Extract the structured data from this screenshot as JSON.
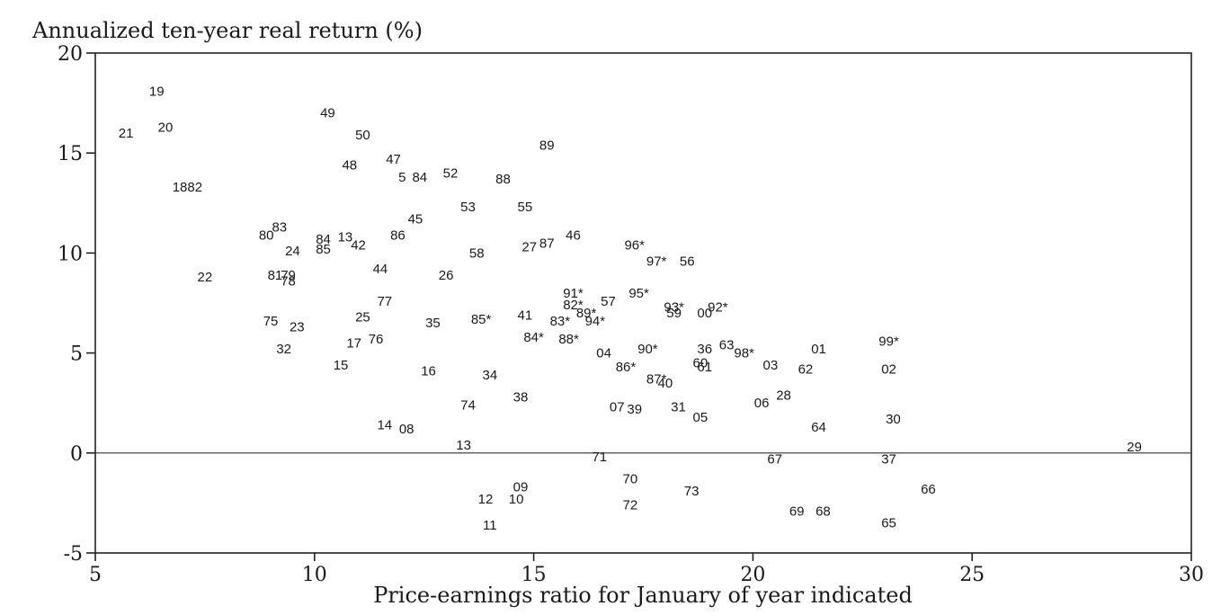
{
  "chart_data": {
    "type": "scatter",
    "ylabel": "Annualized ten-year real return (%)",
    "xlabel": "Price-earnings ratio for January of year indicated",
    "xlim": [
      5,
      30
    ],
    "ylim": [
      -5,
      20
    ],
    "x_ticks": [
      5,
      10,
      15,
      20,
      25,
      30
    ],
    "y_ticks": [
      20,
      15,
      10,
      5,
      0,
      -5
    ],
    "reference_line_y": 0,
    "grid": false,
    "points": [
      {
        "label": "19",
        "x": 6.4,
        "y": 18.1
      },
      {
        "label": "20",
        "x": 6.6,
        "y": 16.3
      },
      {
        "label": "21",
        "x": 5.7,
        "y": 16.0
      },
      {
        "label": "1882",
        "x": 7.1,
        "y": 13.3
      },
      {
        "label": "49",
        "x": 10.3,
        "y": 17.0
      },
      {
        "label": "50",
        "x": 11.1,
        "y": 15.9
      },
      {
        "label": "48",
        "x": 10.8,
        "y": 14.4
      },
      {
        "label": "47",
        "x": 11.8,
        "y": 14.7
      },
      {
        "label": "5",
        "x": 12.0,
        "y": 13.8
      },
      {
        "label": "84",
        "x": 12.4,
        "y": 13.8
      },
      {
        "label": "52",
        "x": 13.1,
        "y": 14.0
      },
      {
        "label": "88",
        "x": 14.3,
        "y": 13.7
      },
      {
        "label": "89",
        "x": 15.3,
        "y": 15.4
      },
      {
        "label": "53",
        "x": 13.5,
        "y": 12.3
      },
      {
        "label": "55",
        "x": 14.8,
        "y": 12.3
      },
      {
        "label": "45",
        "x": 12.3,
        "y": 11.7
      },
      {
        "label": "83",
        "x": 9.2,
        "y": 11.3
      },
      {
        "label": "80",
        "x": 8.9,
        "y": 10.9
      },
      {
        "label": "84",
        "x": 10.2,
        "y": 10.7
      },
      {
        "label": "13",
        "x": 10.7,
        "y": 10.8
      },
      {
        "label": "86",
        "x": 11.9,
        "y": 10.9
      },
      {
        "label": "24",
        "x": 9.5,
        "y": 10.1
      },
      {
        "label": "85",
        "x": 10.2,
        "y": 10.2
      },
      {
        "label": "42",
        "x": 11.0,
        "y": 10.4
      },
      {
        "label": "58",
        "x": 13.7,
        "y": 10.0
      },
      {
        "label": "27",
        "x": 14.9,
        "y": 10.3
      },
      {
        "label": "87",
        "x": 15.3,
        "y": 10.5
      },
      {
        "label": "46",
        "x": 15.9,
        "y": 10.9
      },
      {
        "label": "96*",
        "x": 17.3,
        "y": 10.4
      },
      {
        "label": "97*",
        "x": 17.8,
        "y": 9.6
      },
      {
        "label": "56",
        "x": 18.5,
        "y": 9.6
      },
      {
        "label": "22",
        "x": 7.5,
        "y": 8.8
      },
      {
        "label": "81",
        "x": 9.1,
        "y": 8.9
      },
      {
        "label": "79",
        "x": 9.4,
        "y": 8.9
      },
      {
        "label": "78",
        "x": 9.4,
        "y": 8.6
      },
      {
        "label": "44",
        "x": 11.5,
        "y": 9.2
      },
      {
        "label": "26",
        "x": 13.0,
        "y": 8.9
      },
      {
        "label": "91*",
        "x": 15.9,
        "y": 8.0
      },
      {
        "label": "95*",
        "x": 17.4,
        "y": 8.0
      },
      {
        "label": "82*",
        "x": 15.9,
        "y": 7.4
      },
      {
        "label": "57",
        "x": 16.7,
        "y": 7.6
      },
      {
        "label": "93*",
        "x": 18.2,
        "y": 7.3
      },
      {
        "label": "92*",
        "x": 19.2,
        "y": 7.3
      },
      {
        "label": "59",
        "x": 18.2,
        "y": 7.0
      },
      {
        "label": "00",
        "x": 18.9,
        "y": 7.0
      },
      {
        "label": "89*",
        "x": 16.2,
        "y": 7.0
      },
      {
        "label": "77",
        "x": 11.6,
        "y": 7.6
      },
      {
        "label": "25",
        "x": 11.1,
        "y": 6.8
      },
      {
        "label": "75",
        "x": 9.0,
        "y": 6.6
      },
      {
        "label": "23",
        "x": 9.6,
        "y": 6.3
      },
      {
        "label": "35",
        "x": 12.7,
        "y": 6.5
      },
      {
        "label": "85*",
        "x": 13.8,
        "y": 6.7
      },
      {
        "label": "41",
        "x": 14.8,
        "y": 6.9
      },
      {
        "label": "83*",
        "x": 15.6,
        "y": 6.6
      },
      {
        "label": "94*",
        "x": 16.4,
        "y": 6.6
      },
      {
        "label": "84*",
        "x": 15.0,
        "y": 5.8
      },
      {
        "label": "88*",
        "x": 15.8,
        "y": 5.7
      },
      {
        "label": "17",
        "x": 10.9,
        "y": 5.5
      },
      {
        "label": "76",
        "x": 11.4,
        "y": 5.7
      },
      {
        "label": "32",
        "x": 9.3,
        "y": 5.2
      },
      {
        "label": "04",
        "x": 16.6,
        "y": 5.0
      },
      {
        "label": "90*",
        "x": 17.6,
        "y": 5.2
      },
      {
        "label": "36",
        "x": 18.9,
        "y": 5.2
      },
      {
        "label": "63",
        "x": 19.4,
        "y": 5.4
      },
      {
        "label": "98*",
        "x": 19.8,
        "y": 5.0
      },
      {
        "label": "01",
        "x": 21.5,
        "y": 5.2
      },
      {
        "label": "99*",
        "x": 23.1,
        "y": 5.6
      },
      {
        "label": "15",
        "x": 10.6,
        "y": 4.4
      },
      {
        "label": "16",
        "x": 12.6,
        "y": 4.1
      },
      {
        "label": "34",
        "x": 14.0,
        "y": 3.9
      },
      {
        "label": "86*",
        "x": 17.1,
        "y": 4.3
      },
      {
        "label": "60",
        "x": 18.8,
        "y": 4.5
      },
      {
        "label": "61",
        "x": 18.9,
        "y": 4.3
      },
      {
        "label": "03",
        "x": 20.4,
        "y": 4.4
      },
      {
        "label": "62",
        "x": 21.2,
        "y": 4.2
      },
      {
        "label": "02",
        "x": 23.1,
        "y": 4.2
      },
      {
        "label": "87*",
        "x": 17.8,
        "y": 3.7
      },
      {
        "label": "40",
        "x": 18.0,
        "y": 3.5
      },
      {
        "label": "38",
        "x": 14.7,
        "y": 2.8
      },
      {
        "label": "74",
        "x": 13.5,
        "y": 2.4
      },
      {
        "label": "07",
        "x": 16.9,
        "y": 2.3
      },
      {
        "label": "39",
        "x": 17.3,
        "y": 2.2
      },
      {
        "label": "31",
        "x": 18.3,
        "y": 2.3
      },
      {
        "label": "05",
        "x": 18.8,
        "y": 1.8
      },
      {
        "label": "06",
        "x": 20.2,
        "y": 2.5
      },
      {
        "label": "28",
        "x": 20.7,
        "y": 2.9
      },
      {
        "label": "30",
        "x": 23.2,
        "y": 1.7
      },
      {
        "label": "14",
        "x": 11.6,
        "y": 1.4
      },
      {
        "label": "08",
        "x": 12.1,
        "y": 1.2
      },
      {
        "label": "64",
        "x": 21.5,
        "y": 1.3
      },
      {
        "label": "13",
        "x": 13.4,
        "y": 0.4
      },
      {
        "label": "71",
        "x": 16.5,
        "y": -0.2
      },
      {
        "label": "29",
        "x": 28.7,
        "y": 0.3
      },
      {
        "label": "67",
        "x": 20.5,
        "y": -0.3
      },
      {
        "label": "37",
        "x": 23.1,
        "y": -0.3
      },
      {
        "label": "70",
        "x": 17.2,
        "y": -1.3
      },
      {
        "label": "09",
        "x": 14.7,
        "y": -1.7
      },
      {
        "label": "73",
        "x": 18.6,
        "y": -1.9
      },
      {
        "label": "66",
        "x": 24.0,
        "y": -1.8
      },
      {
        "label": "12",
        "x": 13.9,
        "y": -2.3
      },
      {
        "label": "10",
        "x": 14.6,
        "y": -2.3
      },
      {
        "label": "72",
        "x": 17.2,
        "y": -2.6
      },
      {
        "label": "69",
        "x": 21.0,
        "y": -2.9
      },
      {
        "label": "68",
        "x": 21.6,
        "y": -2.9
      },
      {
        "label": "11",
        "x": 14.0,
        "y": -3.6
      },
      {
        "label": "65",
        "x": 23.1,
        "y": -3.5
      }
    ]
  }
}
